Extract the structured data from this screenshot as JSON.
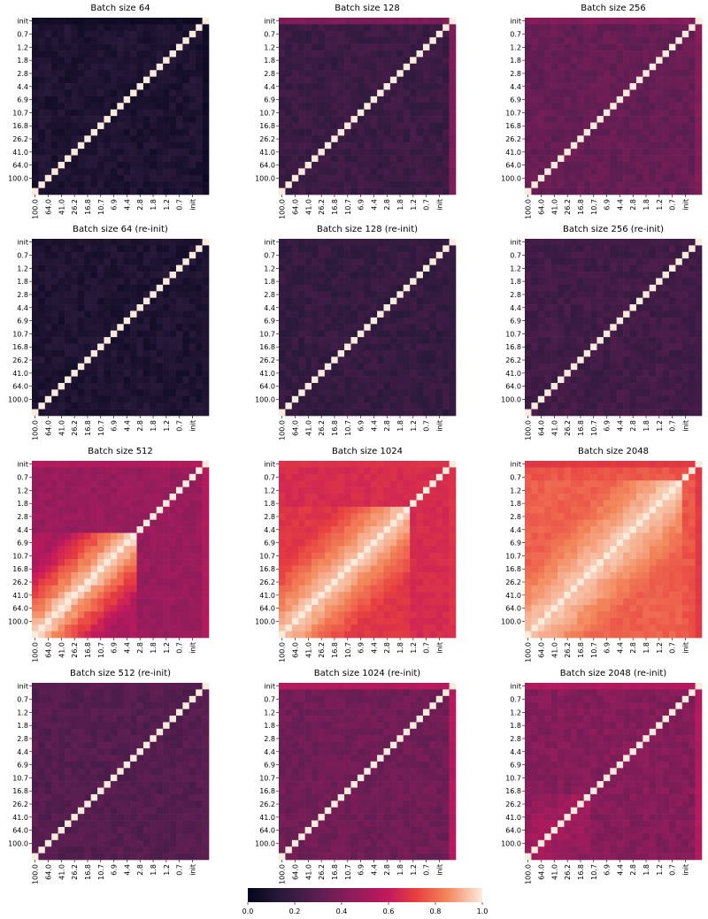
{
  "chart_data": {
    "type": "heatmap",
    "tick_labels": [
      "init",
      "0.7",
      "1.2",
      "1.8",
      "2.8",
      "4.4",
      "6.9",
      "10.7",
      "16.8",
      "26.2",
      "41.0",
      "64.0",
      "100.0"
    ],
    "value_range": [
      0.0,
      1.0
    ],
    "colorbar": {
      "ticks": [
        0.0,
        0.2,
        0.4,
        0.6,
        0.8,
        1.0
      ],
      "tick_labels": [
        "0.0",
        "0.2",
        "0.4",
        "0.6",
        "0.8",
        "1.0"
      ]
    },
    "grid": false,
    "panels": [
      {
        "title": "Batch size 64",
        "base": 0.1,
        "init_corr": 0.05,
        "block_strength": 0.0,
        "block_from_top": 1,
        "noise": 0.04
      },
      {
        "title": "Batch size 128",
        "base": 0.2,
        "init_corr": 0.4,
        "block_strength": 0.0,
        "block_from_top": 1,
        "noise": 0.04
      },
      {
        "title": "Batch size 256",
        "base": 0.33,
        "init_corr": 0.42,
        "block_strength": 0.0,
        "block_from_top": 1,
        "noise": 0.04
      },
      {
        "title": "Batch size 64 (re-init)",
        "base": 0.1,
        "init_corr": 0.1,
        "block_strength": 0.0,
        "block_from_top": 1,
        "noise": 0.04
      },
      {
        "title": "Batch size 128 (re-init)",
        "base": 0.18,
        "init_corr": 0.18,
        "block_strength": 0.0,
        "block_from_top": 1,
        "noise": 0.04
      },
      {
        "title": "Batch size 256 (re-init)",
        "base": 0.22,
        "init_corr": 0.22,
        "block_strength": 0.0,
        "block_from_top": 1,
        "noise": 0.04
      },
      {
        "title": "Batch size 512",
        "base": 0.48,
        "init_corr": 0.55,
        "block_strength": 0.5,
        "block_from_top": 6,
        "noise": 0.03
      },
      {
        "title": "Batch size 1024",
        "base": 0.66,
        "init_corr": 0.68,
        "block_strength": 0.3,
        "block_from_top": 4,
        "noise": 0.02
      },
      {
        "title": "Batch size 2048",
        "base": 0.76,
        "init_corr": 0.7,
        "block_strength": 0.2,
        "block_from_top": 2,
        "noise": 0.02
      },
      {
        "title": "Batch size 512 (re-init)",
        "base": 0.28,
        "init_corr": 0.3,
        "block_strength": 0.0,
        "block_from_top": 1,
        "noise": 0.04
      },
      {
        "title": "Batch size 1024 (re-init)",
        "base": 0.36,
        "init_corr": 0.55,
        "block_strength": 0.0,
        "block_from_top": 1,
        "noise": 0.04
      },
      {
        "title": "Batch size 2048 (re-init)",
        "base": 0.42,
        "init_corr": 0.55,
        "block_strength": 0.1,
        "block_from_top": 9,
        "noise": 0.04
      }
    ]
  }
}
